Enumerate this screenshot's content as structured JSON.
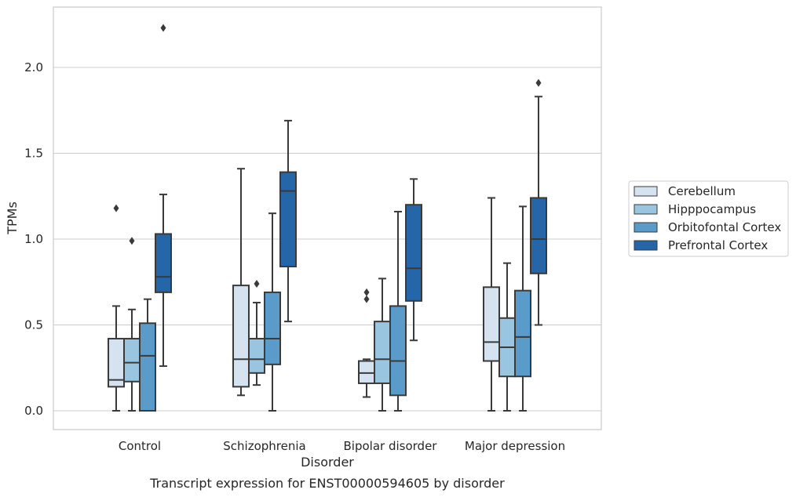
{
  "chart_data": {
    "type": "box",
    "xlabel": "Disorder",
    "ylabel": "TPMs",
    "caption": "Transcript expression for ENST00000594605 by disorder",
    "categories": [
      "Control",
      "Schizophrenia",
      "Bipolar disorder",
      "Major depression"
    ],
    "ylim": [
      -0.11,
      2.35
    ],
    "yticks": [
      0.0,
      0.5,
      1.0,
      1.5,
      2.0
    ],
    "ytick_labels": [
      "0.0",
      "0.5",
      "1.0",
      "1.5",
      "2.0"
    ],
    "grid": "horizontal",
    "legend_position": "outside-right",
    "series": [
      {
        "name": "Cerebellum",
        "color": "#d5e3f1",
        "boxes": [
          {
            "whisker_low": 0.0,
            "q1": 0.14,
            "median": 0.18,
            "q3": 0.42,
            "whisker_high": 0.61,
            "outliers": [
              1.18
            ]
          },
          {
            "whisker_low": 0.09,
            "q1": 0.14,
            "median": 0.3,
            "q3": 0.73,
            "whisker_high": 1.41,
            "outliers": []
          },
          {
            "whisker_low": 0.08,
            "q1": 0.16,
            "median": 0.22,
            "q3": 0.29,
            "whisker_high": 0.3,
            "outliers": [
              0.65,
              0.69
            ]
          },
          {
            "whisker_low": 0.0,
            "q1": 0.29,
            "median": 0.4,
            "q3": 0.72,
            "whisker_high": 1.24,
            "outliers": []
          }
        ]
      },
      {
        "name": "Hipppocampus",
        "color": "#9ac5e0",
        "boxes": [
          {
            "whisker_low": 0.0,
            "q1": 0.17,
            "median": 0.28,
            "q3": 0.42,
            "whisker_high": 0.59,
            "outliers": [
              0.99
            ]
          },
          {
            "whisker_low": 0.15,
            "q1": 0.22,
            "median": 0.3,
            "q3": 0.42,
            "whisker_high": 0.63,
            "outliers": [
              0.74
            ]
          },
          {
            "whisker_low": 0.0,
            "q1": 0.16,
            "median": 0.3,
            "q3": 0.52,
            "whisker_high": 0.77,
            "outliers": []
          },
          {
            "whisker_low": 0.0,
            "q1": 0.2,
            "median": 0.37,
            "q3": 0.54,
            "whisker_high": 0.86,
            "outliers": []
          }
        ]
      },
      {
        "name": "Orbitofontal Cortex",
        "color": "#5a9bc9",
        "boxes": [
          {
            "whisker_low": 0.0,
            "q1": 0.0,
            "median": 0.32,
            "q3": 0.51,
            "whisker_high": 0.65,
            "outliers": []
          },
          {
            "whisker_low": 0.0,
            "q1": 0.27,
            "median": 0.42,
            "q3": 0.69,
            "whisker_high": 1.15,
            "outliers": []
          },
          {
            "whisker_low": 0.0,
            "q1": 0.09,
            "median": 0.29,
            "q3": 0.61,
            "whisker_high": 1.16,
            "outliers": []
          },
          {
            "whisker_low": 0.0,
            "q1": 0.2,
            "median": 0.43,
            "q3": 0.7,
            "whisker_high": 1.19,
            "outliers": []
          }
        ]
      },
      {
        "name": "Prefrontal Cortex",
        "color": "#2466a8",
        "boxes": [
          {
            "whisker_low": 0.26,
            "q1": 0.69,
            "median": 0.78,
            "q3": 1.03,
            "whisker_high": 1.26,
            "outliers": [
              2.23
            ]
          },
          {
            "whisker_low": 0.52,
            "q1": 0.84,
            "median": 1.28,
            "q3": 1.39,
            "whisker_high": 1.69,
            "outliers": []
          },
          {
            "whisker_low": 0.41,
            "q1": 0.64,
            "median": 0.83,
            "q3": 1.2,
            "whisker_high": 1.35,
            "outliers": []
          },
          {
            "whisker_low": 0.5,
            "q1": 0.8,
            "median": 1.0,
            "q3": 1.24,
            "whisker_high": 1.83,
            "outliers": [
              1.91
            ]
          }
        ]
      }
    ]
  }
}
